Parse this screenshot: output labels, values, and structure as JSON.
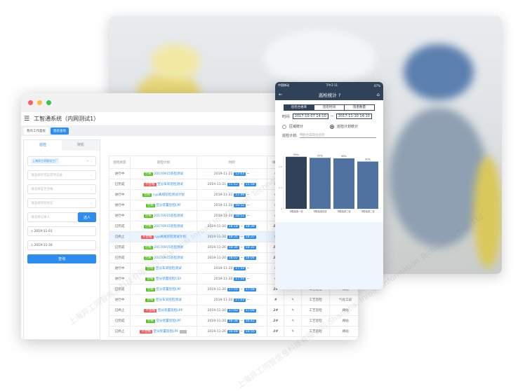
{
  "window": {
    "title": "工智通系统（内网测试1）",
    "tabs": [
      {
        "label": "我的工作面板"
      },
      {
        "label": "巡检查询"
      }
    ],
    "menu_icon": "hamburger-icon"
  },
  "filter": {
    "tabs": [
      "巡检",
      "随机"
    ],
    "selected_chip": "上海异工同智化工厂",
    "placeholders": [
      "请选择有无异常项记录",
      "请选择是否合格",
      "请选择巡检状态",
      "请选择记录人"
    ],
    "select_person": "选人",
    "date_start": "2019-11-01",
    "date_end": "2019-11-30",
    "query": "查询"
  },
  "table": {
    "headers": [
      "巡检状态",
      "巡检计划",
      "时间",
      "填写"
    ],
    "rows": [
      {
        "status": "进行中",
        "result": "合格",
        "plan": "20170915巡检测试",
        "date": "2019-11-21",
        "start": "12:03",
        "end": "",
        "col4": "#"
      },
      {
        "status": "已完成",
        "result": "不合格",
        "plan": "空分车间巡检测试",
        "date": "2019-11-21",
        "start": "11:53",
        "end": "11:58",
        "col4": "#"
      },
      {
        "status": "进行中",
        "result": "合格",
        "plan": "cyp离线巡检测试计划",
        "date": "2019-11-21",
        "start": "11:49",
        "end": "",
        "col4": "#"
      },
      {
        "status": "进行中",
        "result": "合格",
        "plan": "空分装置巡检LPF",
        "date": "2019-11-20",
        "start": "18:52",
        "end": "",
        "col4": "#"
      },
      {
        "status": "进行中",
        "result": "合格",
        "plan": "20170915巡检测试",
        "date": "2019-11-20",
        "start": "18:52",
        "end": "",
        "col4": "#"
      },
      {
        "status": "已完成",
        "result": "合格",
        "plan": "20170915巡检测试",
        "date": "2019-11-20",
        "start": "18:18",
        "end": "18:39",
        "col4": "2#"
      },
      {
        "status": "已终止",
        "result": "不合格",
        "plan": "cyp离线巡检测试计划",
        "date": "2019-11-20",
        "start": "18:35",
        "end": "18:37",
        "col4": "#",
        "highlight": true
      },
      {
        "status": "已完成",
        "result": "合格",
        "plan": "20170915巡检测试",
        "date": "2019-11-20",
        "start": "18:30",
        "end": "18:31",
        "col4": "2#"
      },
      {
        "status": "已完成",
        "result": "合格",
        "plan": "20170915巡检测试",
        "date": "2019-11-20",
        "start": "18:02",
        "end": "18:04",
        "col4": "2#"
      },
      {
        "status": "进行中",
        "result": "合格",
        "plan": "空分车间巡检测试",
        "date": "2019-11-20",
        "start": "17:59",
        "end": "",
        "col4": "#"
      },
      {
        "status": "进行中",
        "result": "合格",
        "plan": "空分装置巡检CSY",
        "date": "2019-11-20",
        "start": "17:59",
        "end": "",
        "col4": "#"
      },
      {
        "status": "已完成",
        "result": "合格",
        "plan": "空分装置巡检LPF",
        "date": "2019-11-20",
        "start": "17:55",
        "end": "17:56",
        "col4": "2#",
        "type": "工艺巡检",
        "area": "阀站"
      },
      {
        "status": "进行中",
        "result": "合格",
        "plan": "空分车间巡检测试",
        "date": "2019-11-20",
        "start": "17:03",
        "end": "",
        "col4": "#",
        "type": "工艺巡检",
        "area": "气化工段"
      },
      {
        "status": "已终止",
        "result": "不合格",
        "plan": "空分装置巡检LPF",
        "date": "2019-11-20",
        "start": "17:03",
        "end": "17:04",
        "col4": "2#",
        "type": "工艺巡检",
        "area": "阀站"
      },
      {
        "status": "已完成",
        "result": "合格",
        "plan": "空分装置巡检LPF",
        "date": "2019-11-20",
        "start": "16:38",
        "end": "16:41",
        "col4": "2#",
        "type": "工艺巡检",
        "area": "阀站"
      },
      {
        "status": "已终止",
        "result": "不合格",
        "plan": "空分装置巡检LPF",
        "date": "2019-11-20",
        "start": "16:48",
        "end": "14:55",
        "col4": "2#",
        "type": "工艺巡检",
        "area": "阀站",
        "extra": "..."
      }
    ]
  },
  "phone": {
    "carrier": "中国移动",
    "time": "下午2:11",
    "battery": "67%",
    "title": "巡检统计",
    "segments": [
      "巡检合格率",
      "巡检时间",
      "隐患数量"
    ],
    "time_label": "时间:",
    "from": "2017-10-07 14:10",
    "to": "2017-11-10 14:10",
    "radio": [
      "区域统计",
      "巡检计划统计"
    ],
    "plan_label": "巡检计划:",
    "plan_placeholder": "甲醇合成岗位巡检"
  },
  "chart_data": {
    "type": "bar",
    "categories": [
      "甲醇装置一班",
      "甲醇装置四班",
      "甲醇装置三班",
      "甲醇装置二班"
    ],
    "values": [
      0.99,
      0.97,
      0.96,
      0.9
    ],
    "data_labels": [
      "99%",
      "97%",
      "96%",
      "90%"
    ],
    "yticks": [
      "0",
      "0.4",
      "0.8"
    ],
    "ylim": [
      0,
      1
    ],
    "colors": [
      "#2f4258",
      "#4f72a0",
      "#4f72a0",
      "#4f72a0"
    ]
  },
  "watermark": "上海异工同智信息科技有限公司 Shanghai Inroad Information Technology Co., Ltd."
}
